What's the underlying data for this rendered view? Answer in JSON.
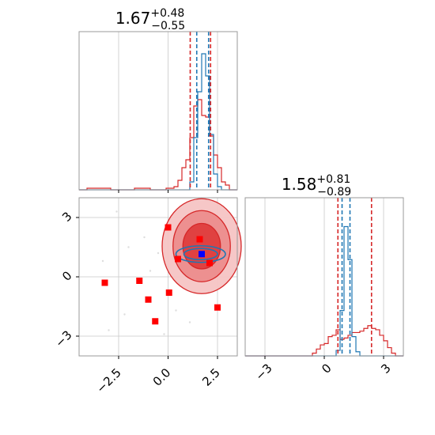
{
  "chart_data": [
    {
      "type": "histogram",
      "panel": "top-left marginal (parameter 1)",
      "title": {
        "median": "1.67",
        "plus": "+0.48",
        "minus": "−0.55"
      },
      "xlim": [
        -4.5,
        3.5
      ],
      "grid": true,
      "bins_x": [
        -4.5,
        -4.1,
        -3.7,
        -3.3,
        -2.9,
        -2.5,
        -2.1,
        -1.7,
        -1.3,
        -0.9,
        -0.5,
        -0.1,
        0.3,
        0.5,
        0.7,
        0.9,
        1.1,
        1.3,
        1.5,
        1.7,
        1.9,
        2.1,
        2.3,
        2.5,
        2.7,
        2.9,
        3.1,
        3.5
      ],
      "series": [
        {
          "color": "#d62728",
          "values": [
            0,
            0.01,
            0.01,
            0.01,
            0,
            0,
            0,
            0.01,
            0.01,
            0,
            0,
            0.01,
            0.02,
            0.06,
            0.14,
            0.19,
            0.33,
            0.53,
            0.57,
            0.47,
            0.46,
            0.34,
            0.22,
            0.14,
            0.05,
            0.03,
            0
          ]
        },
        {
          "color": "#1f77b4",
          "values": [
            0,
            0,
            0,
            0,
            0,
            0,
            0,
            0,
            0,
            0,
            0,
            0,
            0,
            0,
            0,
            0,
            0.05,
            0.33,
            0.62,
            0.86,
            0.72,
            0.35,
            0.1,
            0.02,
            0,
            0,
            0
          ]
        }
      ],
      "vlines": [
        {
          "x": 1.12,
          "color": "#d62728"
        },
        {
          "x": 2.15,
          "color": "#d62728"
        },
        {
          "x": 1.45,
          "color": "#1f77b4"
        },
        {
          "x": 2.05,
          "color": "#1f77b4"
        }
      ]
    },
    {
      "type": "scatter",
      "panel": "bottom-left joint (parameter 1 vs parameter 2)",
      "xlim": [
        -4.5,
        3.5
      ],
      "ylim": [
        -4.0,
        4.0
      ],
      "xticks": [
        -2.5,
        0.0,
        2.5
      ],
      "xtick_labels": [
        "−2.5",
        "0.0",
        "2.5"
      ],
      "yticks": [
        -3,
        0,
        3
      ],
      "ytick_labels": [
        "−3",
        "0",
        "3"
      ],
      "grid": true,
      "red_contours": {
        "color": "#d62728",
        "center": [
          1.7,
          1.55
        ],
        "levels": [
          {
            "rx": 2.0,
            "ry": 2.4
          },
          {
            "rx": 1.45,
            "ry": 1.8
          },
          {
            "rx": 0.95,
            "ry": 1.15
          }
        ]
      },
      "blue_contours": {
        "color": "#1f77b4",
        "center": [
          1.65,
          1.15
        ],
        "levels": [
          {
            "rx": 1.25,
            "ry": 0.42
          },
          {
            "rx": 0.85,
            "ry": 0.28
          }
        ]
      },
      "red_squares": [
        {
          "x": 0.0,
          "y": 2.5
        },
        {
          "x": 1.6,
          "y": 1.9
        },
        {
          "x": 0.5,
          "y": 0.9
        },
        {
          "x": 2.1,
          "y": 0.7
        },
        {
          "x": -3.2,
          "y": -0.3
        },
        {
          "x": -1.45,
          "y": -0.2
        },
        {
          "x": -1.0,
          "y": -1.15
        },
        {
          "x": 0.05,
          "y": -0.8
        },
        {
          "x": -0.65,
          "y": -2.25
        },
        {
          "x": 2.5,
          "y": -1.55
        }
      ],
      "truth_marker": {
        "x": 1.7,
        "y": 1.15,
        "color": "#0000ff"
      },
      "faint_samples": [
        {
          "x": -3.3,
          "y": 0.8
        },
        {
          "x": -2.6,
          "y": 3.3
        },
        {
          "x": -2.0,
          "y": 1.5
        },
        {
          "x": -1.2,
          "y": 2.0
        },
        {
          "x": -0.9,
          "y": 0.3
        },
        {
          "x": -2.2,
          "y": -1.9
        },
        {
          "x": -0.2,
          "y": -2.9
        },
        {
          "x": 0.4,
          "y": -1.7
        },
        {
          "x": 1.1,
          "y": -2.3
        },
        {
          "x": -3.0,
          "y": -2.7
        },
        {
          "x": -0.5,
          "y": 1.2
        },
        {
          "x": 0.8,
          "y": 3.0
        }
      ]
    },
    {
      "type": "histogram",
      "panel": "bottom-right marginal (parameter 2)",
      "title": {
        "median": "1.58",
        "plus": "+0.81",
        "minus": "−0.89"
      },
      "xlim": [
        -4.0,
        4.0
      ],
      "xticks": [
        -3,
        0,
        3
      ],
      "xtick_labels": [
        "−3",
        "0",
        "3"
      ],
      "grid": true,
      "bins_x": [
        -4.0,
        -0.6,
        -0.4,
        -0.2,
        0.0,
        0.2,
        0.4,
        0.6,
        0.8,
        1.0,
        1.2,
        1.4,
        1.6,
        1.8,
        2.0,
        2.2,
        2.4,
        2.6,
        2.8,
        3.0,
        3.2,
        3.4,
        3.6,
        4.0
      ],
      "series": [
        {
          "color": "#d62728",
          "values": [
            0,
            0.02,
            0.05,
            0.08,
            0.09,
            0.14,
            0.15,
            0.19,
            0.12,
            0.13,
            0.15,
            0.17,
            0.17,
            0.18,
            0.2,
            0.22,
            0.2,
            0.19,
            0.15,
            0.11,
            0.06,
            0.02,
            0
          ]
        },
        {
          "color": "#1f77b4",
          "values": [
            0,
            0,
            0,
            0,
            0,
            0,
            0,
            0.04,
            0.33,
            0.94,
            0.7,
            0.14,
            0.03,
            0,
            0,
            0,
            0,
            0,
            0,
            0,
            0,
            0,
            0
          ]
        }
      ],
      "vlines": [
        {
          "x": 0.69,
          "color": "#d62728"
        },
        {
          "x": 2.39,
          "color": "#d62728"
        },
        {
          "x": 0.9,
          "color": "#1f77b4"
        },
        {
          "x": 1.3,
          "color": "#1f77b4"
        }
      ]
    }
  ]
}
